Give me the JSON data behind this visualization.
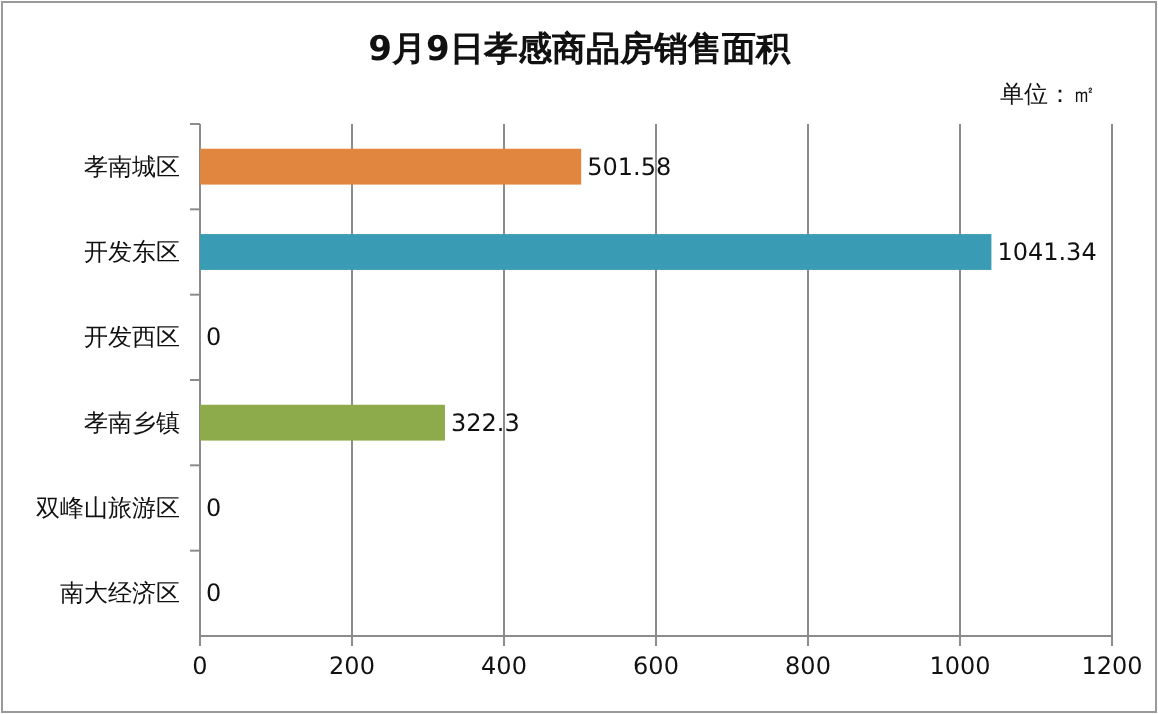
{
  "chart_data": {
    "type": "bar",
    "orientation": "horizontal",
    "title": "9月9日孝感商品房销售面积",
    "annotations": [
      "单位：㎡"
    ],
    "categories": [
      "孝南城区",
      "开发东区",
      "开发西区",
      "孝南乡镇",
      "双峰山旅游区",
      "南大经济区"
    ],
    "values": [
      501.58,
      1041.34,
      0,
      322.3,
      0,
      0
    ],
    "colors": [
      "#e0863e",
      "#3a9bb5",
      "#4f81bd",
      "#8eab4c",
      "#4f81bd",
      "#4f81bd"
    ],
    "xlim": [
      0,
      1200
    ],
    "xticks": [
      0,
      200,
      400,
      600,
      800,
      1000,
      1200
    ],
    "grid": "x",
    "data_labels": true
  }
}
